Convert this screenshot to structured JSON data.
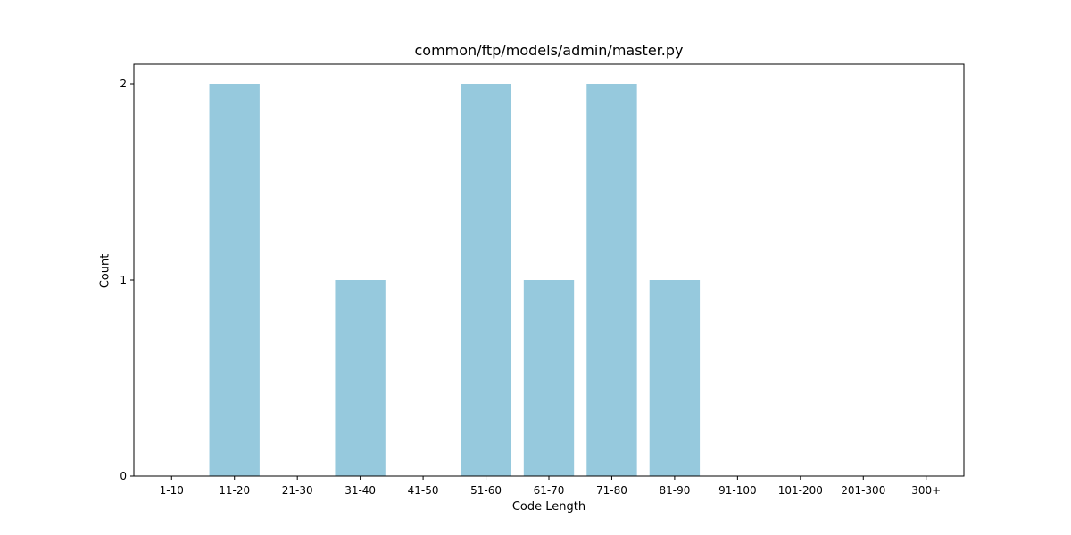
{
  "chart_data": {
    "type": "bar",
    "title": "common/ftp/models/admin/master.py",
    "xlabel": "Code Length",
    "ylabel": "Count",
    "categories": [
      "1-10",
      "11-20",
      "21-30",
      "31-40",
      "41-50",
      "51-60",
      "61-70",
      "71-80",
      "81-90",
      "91-100",
      "101-200",
      "201-300",
      "300+"
    ],
    "values": [
      0,
      2,
      0,
      1,
      0,
      2,
      1,
      2,
      1,
      0,
      0,
      0,
      0
    ],
    "ylim": [
      0,
      2.1
    ],
    "yticks": [
      0,
      1,
      2
    ],
    "grid": false,
    "legend": "none",
    "bar_color": "#96c9dd"
  }
}
